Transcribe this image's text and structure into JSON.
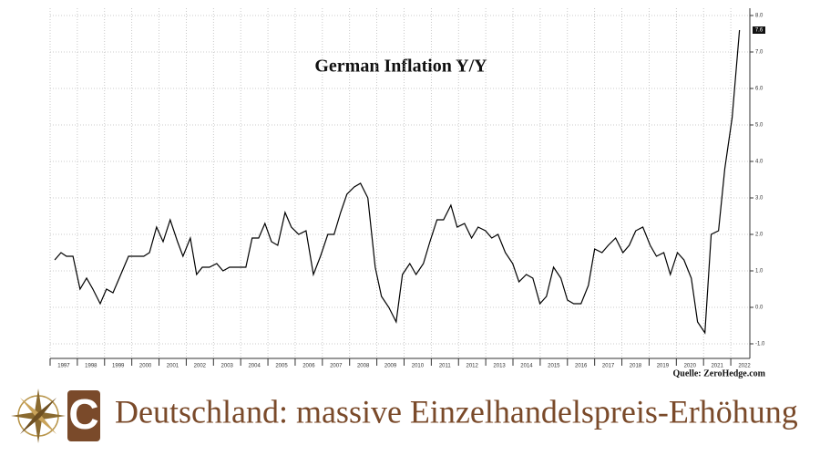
{
  "chart_data": {
    "type": "line",
    "title": "German Inflation Y/Y",
    "source": "Quelle: ZeroHedge.com",
    "caption": "Deutschland: massive Einzelhandelspreis-Erhöhung",
    "color": "#000000",
    "grid": true,
    "x": [
      1997.17,
      1997.4,
      1997.6,
      1997.84,
      1998.1,
      1998.34,
      1998.57,
      1998.84,
      1999.07,
      1999.31,
      1999.54,
      1999.88,
      2000.18,
      2000.44,
      2000.65,
      2000.91,
      2001.15,
      2001.41,
      2001.68,
      2001.88,
      2002.15,
      2002.38,
      2002.59,
      2002.85,
      2003.12,
      2003.35,
      2003.59,
      2003.86,
      2004.19,
      2004.42,
      2004.66,
      2004.89,
      2005.13,
      2005.36,
      2005.63,
      2005.86,
      2006.13,
      2006.4,
      2006.67,
      2006.93,
      2007.2,
      2007.43,
      2007.67,
      2007.9,
      2008.17,
      2008.4,
      2008.67,
      2008.94,
      2009.17,
      2009.44,
      2009.71,
      2009.94,
      2010.21,
      2010.44,
      2010.71,
      2010.95,
      2011.21,
      2011.45,
      2011.72,
      2011.95,
      2012.22,
      2012.48,
      2012.72,
      2012.99,
      2013.22,
      2013.45,
      2013.72,
      2013.99,
      2014.22,
      2014.49,
      2014.73,
      2014.99,
      2015.23,
      2015.49,
      2015.76,
      2016.0,
      2016.23,
      2016.5,
      2016.77,
      2017.0,
      2017.27,
      2017.5,
      2017.77,
      2018.04,
      2018.27,
      2018.51,
      2018.77,
      2019.04,
      2019.27,
      2019.54,
      2019.78,
      2020.04,
      2020.28,
      2020.55,
      2020.78,
      2021.05,
      2021.28,
      2021.55,
      2021.78,
      2022.05,
      2022.32
    ],
    "values": [
      1.3,
      1.5,
      1.4,
      1.4,
      0.5,
      0.8,
      0.5,
      0.1,
      0.5,
      0.4,
      0.8,
      1.4,
      1.4,
      1.4,
      1.5,
      2.2,
      1.8,
      2.4,
      1.8,
      1.4,
      1.9,
      0.9,
      1.1,
      1.1,
      1.2,
      1.0,
      1.1,
      1.1,
      1.1,
      1.9,
      1.9,
      2.3,
      1.8,
      1.7,
      2.6,
      2.2,
      2.0,
      2.1,
      0.9,
      1.4,
      2.0,
      2.0,
      2.6,
      3.1,
      3.3,
      3.4,
      3.0,
      1.1,
      0.3,
      0.0,
      -0.4,
      0.9,
      1.2,
      0.9,
      1.2,
      1.8,
      2.4,
      2.4,
      2.8,
      2.2,
      2.3,
      1.9,
      2.2,
      2.1,
      1.9,
      2.0,
      1.5,
      1.2,
      0.7,
      0.9,
      0.8,
      0.1,
      0.3,
      1.1,
      0.8,
      0.2,
      0.1,
      0.1,
      0.6,
      1.6,
      1.5,
      1.7,
      1.9,
      1.5,
      1.7,
      2.1,
      2.2,
      1.7,
      1.4,
      1.5,
      0.9,
      1.5,
      1.3,
      0.8,
      -0.4,
      -0.7,
      2.0,
      2.1,
      3.8,
      5.2,
      7.6
    ],
    "xlim": [
      1997,
      2022.7
    ],
    "xticks": [
      1997,
      1998,
      1999,
      2000,
      2001,
      2002,
      2003,
      2004,
      2005,
      2006,
      2007,
      2008,
      2009,
      2010,
      2011,
      2012,
      2013,
      2014,
      2015,
      2016,
      2017,
      2018,
      2019,
      2020,
      2021,
      2022
    ],
    "ylim": [
      -1.4,
      8.2
    ],
    "yticks": [
      {
        "value": -1,
        "label": "-1.0"
      },
      {
        "value": 0,
        "label": "0.0"
      },
      {
        "value": 1,
        "label": "1.0"
      },
      {
        "value": 2,
        "label": "2.0"
      },
      {
        "value": 3,
        "label": "3.0"
      },
      {
        "value": 4,
        "label": "4.0"
      },
      {
        "value": 5,
        "label": "5.0"
      },
      {
        "value": 6,
        "label": "6.0"
      },
      {
        "value": 7,
        "label": "7.0"
      },
      {
        "value": 8,
        "label": "8.0"
      }
    ]
  }
}
